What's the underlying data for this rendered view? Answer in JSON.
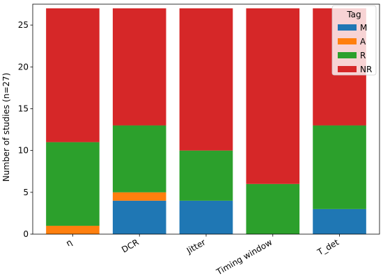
{
  "chart_data": {
    "type": "bar",
    "stacked": true,
    "categories": [
      "η",
      "DCR",
      "Jitter",
      "Timing window",
      "T_det"
    ],
    "series": [
      {
        "name": "M",
        "color": "#1f77b4",
        "values": [
          0,
          4,
          4,
          0,
          3
        ]
      },
      {
        "name": "A",
        "color": "#ff7f0e",
        "values": [
          1,
          1,
          0,
          0,
          0
        ]
      },
      {
        "name": "R",
        "color": "#2ca02c",
        "values": [
          10,
          8,
          6,
          6,
          10
        ]
      },
      {
        "name": "NR",
        "color": "#d62728",
        "values": [
          16,
          14,
          17,
          21,
          14
        ]
      }
    ],
    "title": "",
    "xlabel": "",
    "ylabel": "Number of studies (n=27)",
    "ylim": [
      0,
      27.5
    ],
    "yticks": [
      0,
      5,
      10,
      15,
      20,
      25
    ],
    "grid": false,
    "legend": {
      "title": "Tag",
      "placement": "top-right"
    }
  }
}
